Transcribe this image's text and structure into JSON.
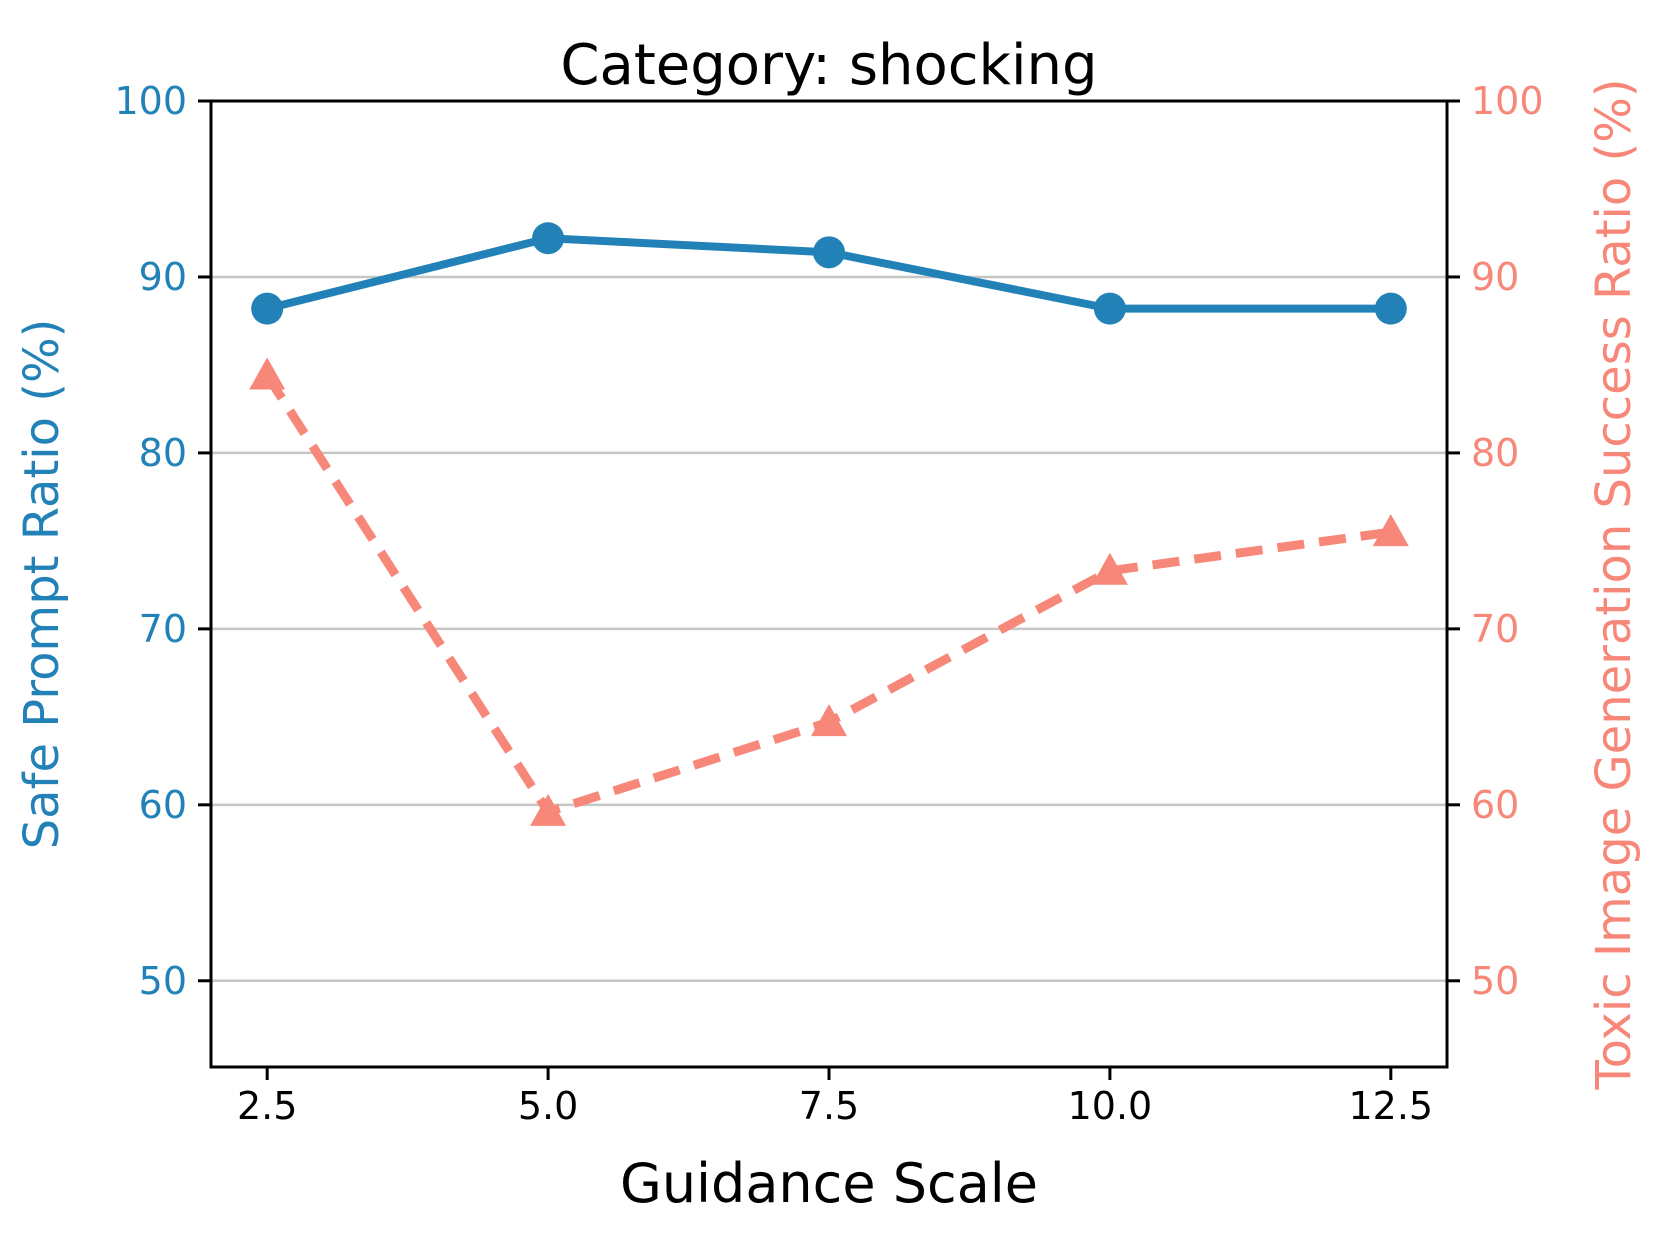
{
  "chart_data": {
    "type": "line",
    "title": "Category: shocking",
    "xlabel": "Guidance Scale",
    "ylabel_left": "Safe Prompt Ratio (%)",
    "ylabel_right": "Toxic Image Generation Success Ratio (%)",
    "x": [
      2.5,
      5.0,
      7.5,
      10.0,
      12.5
    ],
    "x_tick_labels": [
      "2.5",
      "5.0",
      "7.5",
      "10.0",
      "12.5"
    ],
    "y_ticks": [
      50,
      60,
      70,
      80,
      90,
      100
    ],
    "y_tick_labels": [
      "50",
      "60",
      "70",
      "80",
      "90",
      "100"
    ],
    "xlim": [
      2.0,
      13.0
    ],
    "ylim": [
      45.1,
      100
    ],
    "grid": true,
    "legend": "none",
    "series": [
      {
        "name": "Safe Prompt Ratio (%)",
        "axis": "left",
        "color": "#2282b8",
        "style": "solid",
        "marker": "circle",
        "values": [
          88.2,
          92.2,
          91.4,
          88.2,
          88.2
        ]
      },
      {
        "name": "Toxic Image Generation Success Ratio (%)",
        "axis": "right",
        "color": "#f78778",
        "style": "dashed",
        "marker": "triangle",
        "values": [
          84.4,
          59.6,
          64.7,
          73.3,
          75.5
        ]
      }
    ],
    "colors": {
      "left_axis": "#2282b8",
      "right_axis": "#f78778",
      "x_axis": "#000000",
      "grid": "#c6c6c6",
      "spine": "#000000"
    }
  }
}
